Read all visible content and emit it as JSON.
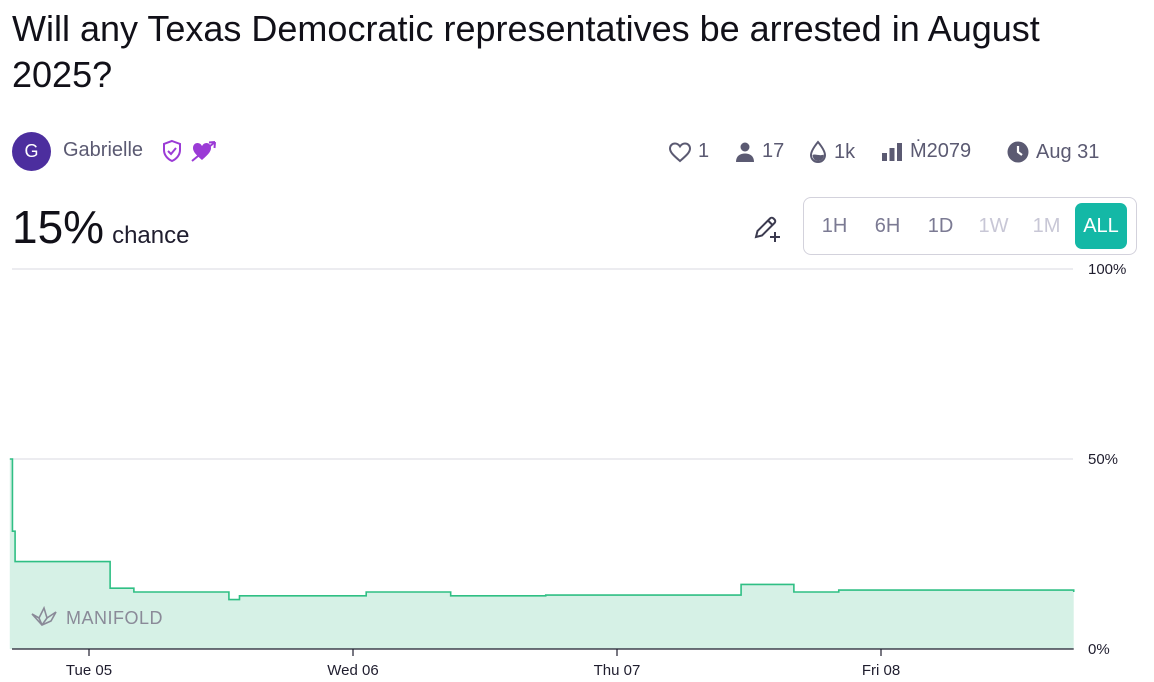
{
  "title": "Will any Texas Democratic representatives be arrested in August 2025?",
  "author": {
    "initial": "G",
    "name": "Gabrielle",
    "badges": [
      "verified-shield-icon",
      "cupid-arrow-heart-icon"
    ]
  },
  "stats": {
    "likes": "1",
    "traders": "17",
    "liquidity": "1k",
    "volume": "Ṁ2079",
    "close_date": "Aug 31"
  },
  "probability": {
    "value": "15%",
    "label": "chance"
  },
  "time_ranges": [
    {
      "label": "1H",
      "state": "enabled"
    },
    {
      "label": "6H",
      "state": "enabled"
    },
    {
      "label": "1D",
      "state": "enabled"
    },
    {
      "label": "1W",
      "state": "disabled"
    },
    {
      "label": "1M",
      "state": "disabled"
    },
    {
      "label": "ALL",
      "state": "active"
    }
  ],
  "watermark": "MANIFOLD",
  "colors": {
    "line": "#2fbf84",
    "fill": "#d6f1e6",
    "accent": "#14b8a6",
    "avatar": "#4c2e9e",
    "badge": "#9b3bd6"
  },
  "chart_data": {
    "type": "area",
    "step": true,
    "y_unit": "probability (%)",
    "ylim": [
      0,
      100
    ],
    "y_ticks": [
      "100%",
      "50%",
      "0%"
    ],
    "x_ticks": [
      "Tue 05",
      "Wed 06",
      "Thu 07",
      "Fri 08"
    ],
    "x_tick_days": [
      0,
      1,
      2,
      3
    ],
    "x_unit_note": "days after Tue 05 00:00",
    "series": [
      {
        "points": [
          [
            -0.3,
            50
          ],
          [
            -0.29,
            31
          ],
          [
            -0.28,
            23
          ],
          [
            0.08,
            16
          ],
          [
            0.17,
            15
          ],
          [
            0.53,
            13
          ],
          [
            0.57,
            14
          ],
          [
            1.05,
            15
          ],
          [
            1.37,
            14
          ],
          [
            1.73,
            14.2
          ],
          [
            2.47,
            17
          ],
          [
            2.67,
            15
          ],
          [
            2.84,
            15.5
          ],
          [
            3.73,
            15
          ]
        ]
      }
    ],
    "grid": true
  }
}
